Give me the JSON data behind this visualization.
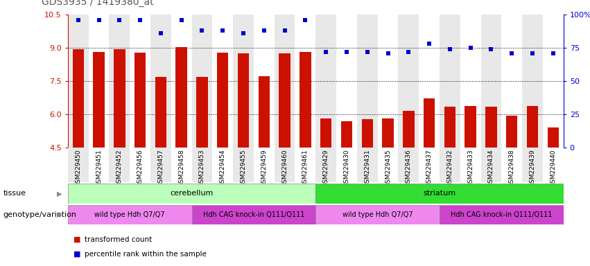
{
  "title": "GDS3935 / 1419380_at",
  "samples": [
    "GSM229450",
    "GSM229451",
    "GSM229452",
    "GSM229456",
    "GSM229457",
    "GSM229458",
    "GSM229453",
    "GSM229454",
    "GSM229455",
    "GSM229459",
    "GSM229460",
    "GSM229461",
    "GSM229429",
    "GSM229430",
    "GSM229431",
    "GSM229435",
    "GSM229436",
    "GSM229437",
    "GSM229432",
    "GSM229433",
    "GSM229434",
    "GSM229438",
    "GSM229439",
    "GSM229440"
  ],
  "bar_values": [
    8.95,
    8.82,
    8.95,
    8.78,
    7.68,
    9.02,
    7.68,
    8.78,
    8.75,
    7.72,
    8.75,
    8.82,
    5.82,
    5.68,
    5.78,
    5.82,
    6.15,
    6.72,
    6.35,
    6.38,
    6.35,
    5.95,
    6.38,
    5.42
  ],
  "percentile_values": [
    96,
    96,
    96,
    96,
    86,
    96,
    88,
    88,
    86,
    88,
    88,
    96,
    72,
    72,
    72,
    71,
    72,
    78,
    74,
    75,
    74,
    71,
    71,
    71
  ],
  "ylim_left": [
    4.5,
    10.5
  ],
  "ylim_right": [
    0,
    100
  ],
  "yticks_left": [
    4.5,
    6.0,
    7.5,
    9.0,
    10.5
  ],
  "yticks_right": [
    0,
    25,
    50,
    75,
    100
  ],
  "bar_color": "#cc1100",
  "dot_color": "#0000cc",
  "tissue_groups": [
    {
      "label": "cerebellum",
      "start": 0,
      "end": 12,
      "color": "#bbffbb"
    },
    {
      "label": "striatum",
      "start": 12,
      "end": 24,
      "color": "#33dd33"
    }
  ],
  "genotype_groups": [
    {
      "label": "wild type Hdh Q7/Q7",
      "start": 0,
      "end": 6,
      "color": "#ee88ee"
    },
    {
      "label": "Hdh CAG knock-in Q111/Q111",
      "start": 6,
      "end": 12,
      "color": "#cc44cc"
    },
    {
      "label": "wild type Hdh Q7/Q7",
      "start": 12,
      "end": 18,
      "color": "#ee88ee"
    },
    {
      "label": "Hdh CAG knock-in Q111/Q111",
      "start": 18,
      "end": 24,
      "color": "#cc44cc"
    }
  ],
  "legend_items": [
    {
      "label": "transformed count",
      "color": "#cc1100"
    },
    {
      "label": "percentile rank within the sample",
      "color": "#0000cc"
    }
  ],
  "tissue_label": "tissue",
  "genotype_label": "genotype/variation",
  "background_color": "#ffffff",
  "title_color": "#555555",
  "left_axis_color": "#cc1100",
  "right_axis_color": "#0000cc"
}
